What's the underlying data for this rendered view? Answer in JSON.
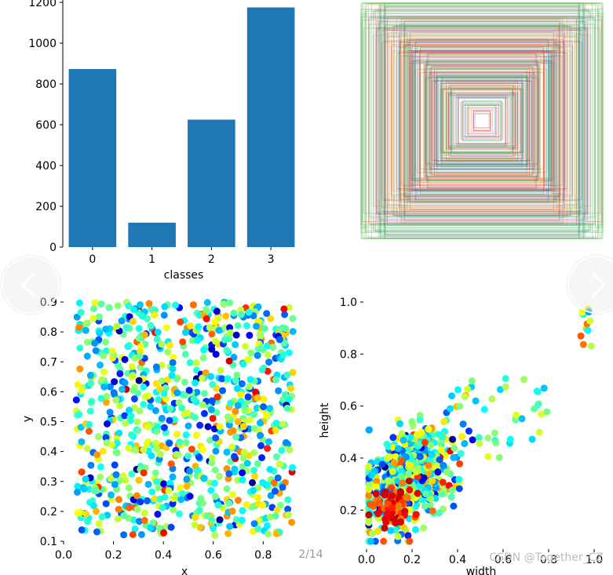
{
  "viewer": {
    "counter": "2/14",
    "watermark": "CSDN @Together_CZ"
  },
  "colors": {
    "bar": "#1f77b4"
  },
  "chart_data": [
    {
      "type": "bar",
      "title": "",
      "xlabel": "classes",
      "ylabel": "",
      "categories": [
        "0",
        "1",
        "2",
        "3"
      ],
      "values": [
        873,
        120,
        625,
        1175
      ],
      "ylim": [
        0,
        1200
      ],
      "yticks": [
        0,
        200,
        400,
        600,
        800,
        1000,
        1200
      ]
    },
    {
      "type": "scatter",
      "title": "",
      "description": "overlay of bounding boxes centered",
      "xlabel": "",
      "ylabel": ""
    },
    {
      "type": "scatter",
      "xlabel": "x",
      "ylabel": "y",
      "xlim": [
        0.0,
        0.95
      ],
      "ylim": [
        0.1,
        0.9
      ],
      "xticks": [
        0.0,
        0.2,
        0.4,
        0.6,
        0.8
      ],
      "yticks": [
        0.1,
        0.2,
        0.3,
        0.4,
        0.5,
        0.6,
        0.7,
        0.8,
        0.9
      ],
      "colormap": "jet",
      "distribution": "roughly uniform in x 0.05-0.92, y 0.12-0.9, ~1000 points"
    },
    {
      "type": "scatter",
      "xlabel": "width",
      "ylabel": "height",
      "xlim": [
        0.0,
        1.0
      ],
      "ylim": [
        0.05,
        1.0
      ],
      "xticks": [
        0.0,
        0.2,
        0.4,
        0.6,
        0.8,
        1.0
      ],
      "yticks": [
        0.2,
        0.4,
        0.6,
        0.8,
        1.0
      ],
      "colormap": "jet",
      "distribution": "dense cluster near width 0.1-0.3, height 0.15-0.4, spreading to (1.0, 1.0)"
    }
  ]
}
